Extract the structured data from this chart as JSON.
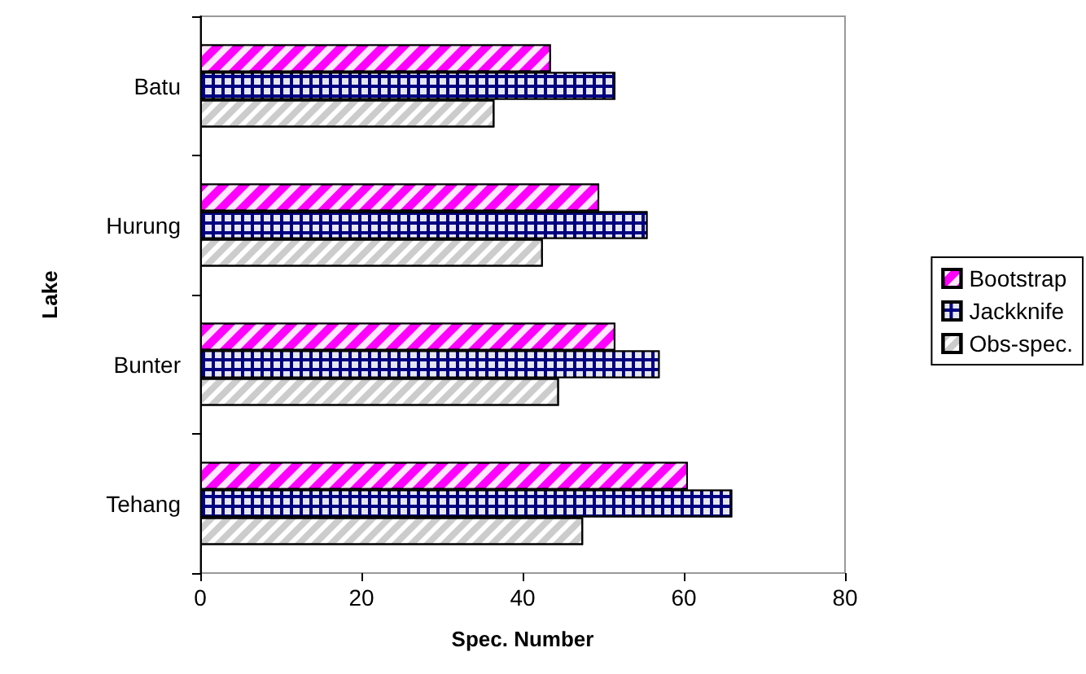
{
  "chart_data": {
    "type": "bar",
    "orientation": "horizontal",
    "xlabel": "Spec. Number",
    "ylabel": "Lake",
    "categories": [
      "Batu",
      "Hurung",
      "Bunter",
      "Tehang"
    ],
    "series": [
      {
        "name": "Bootstrap",
        "color": "#ff00ff",
        "values": [
          43.5,
          49.5,
          51.5,
          60.5
        ]
      },
      {
        "name": "Jackknife",
        "color": "#000080",
        "values": [
          51.5,
          55.5,
          57,
          66
        ]
      },
      {
        "name": "Obs-spec.",
        "color": "#ffffff",
        "values": [
          36.5,
          42.5,
          44.5,
          47.5
        ]
      }
    ],
    "xlim": [
      0,
      80
    ],
    "xticks": [
      0,
      20,
      40,
      60,
      80
    ],
    "grid": false,
    "legend": "right"
  }
}
